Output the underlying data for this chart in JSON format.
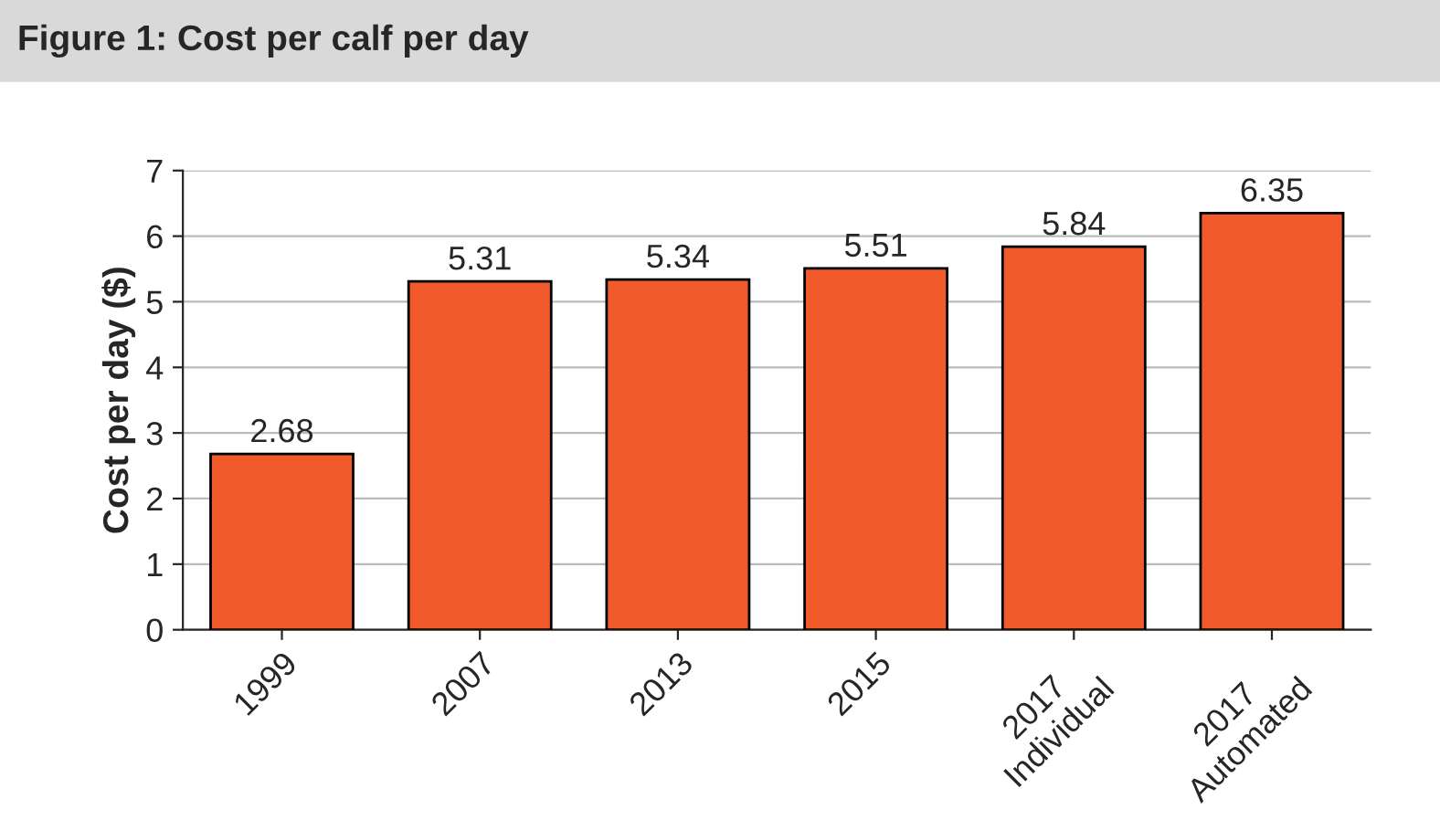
{
  "chart_data": {
    "type": "bar",
    "title": "Figure 1: Cost per calf per day",
    "ylabel": "Cost per day ($)",
    "categories": [
      "1999",
      "2007",
      "2013",
      "2015",
      "2017\nIndividual",
      "2017\nAutomated"
    ],
    "values": [
      2.68,
      5.31,
      5.34,
      5.51,
      5.84,
      6.35
    ],
    "color": "#f15a2b",
    "ylim": [
      0,
      7
    ],
    "yticks": [
      0,
      1,
      2,
      3,
      4,
      5,
      6,
      7
    ],
    "grid": "y",
    "data_labels": true
  }
}
